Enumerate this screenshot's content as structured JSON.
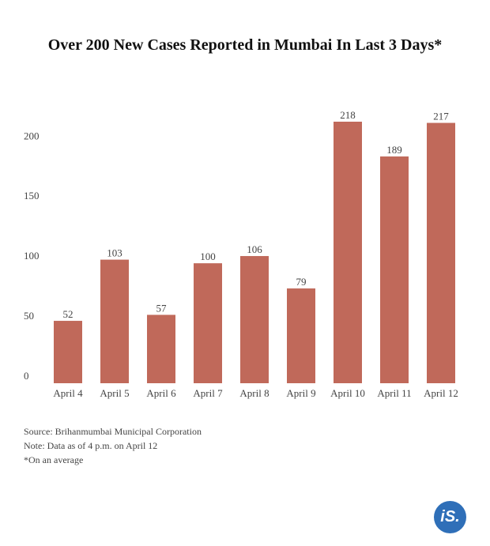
{
  "title": "Over 200 New Cases Reported in Mumbai In Last 3 Days*",
  "chart_data": {
    "type": "bar",
    "categories": [
      "April 4",
      "April 5",
      "April 6",
      "April 7",
      "April 8",
      "April 9",
      "April 10",
      "April 11",
      "April 12"
    ],
    "values": [
      52,
      103,
      57,
      100,
      106,
      79,
      218,
      189,
      217
    ],
    "ylim": [
      0,
      218
    ],
    "yticks": [
      0,
      50,
      100,
      150,
      200
    ],
    "bar_color": "#c0695a",
    "grid": false,
    "legend": "none"
  },
  "notes": {
    "source": "Source: Brihanmumbai Municipal Corporation",
    "note": "Note: Data as of 4 p.m. on April 12",
    "footnote": "*On an average"
  },
  "logo": {
    "text": "iS.",
    "color": "#2f6fb8"
  }
}
